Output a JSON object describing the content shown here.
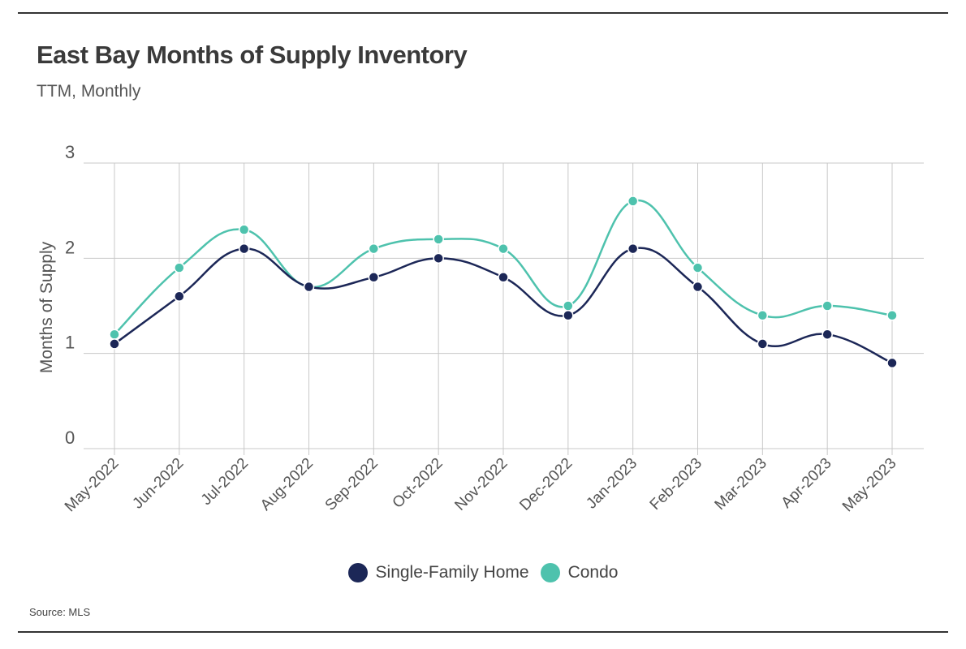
{
  "header": {
    "title": "East Bay Months of Supply Inventory",
    "subtitle": "TTM, Monthly"
  },
  "footer": {
    "source": "Source:  MLS"
  },
  "colors": {
    "single_family": "#1c2757",
    "condo": "#4ec2ad",
    "grid": "#c8c8c8",
    "axis_text": "#555555"
  },
  "chart_data": {
    "type": "line",
    "title": "East Bay Months of Supply Inventory",
    "subtitle": "TTM, Monthly",
    "xlabel": "",
    "ylabel": "Months of Supply",
    "ylim": [
      0,
      3
    ],
    "yticks": [
      "0",
      "1",
      "2",
      "3"
    ],
    "grid": true,
    "legend_position": "bottom-center",
    "categories": [
      "May-2022",
      "Jun-2022",
      "Jul-2022",
      "Aug-2022",
      "Sep-2022",
      "Oct-2022",
      "Nov-2022",
      "Dec-2022",
      "Jan-2023",
      "Feb-2023",
      "Mar-2023",
      "Apr-2023",
      "May-2023"
    ],
    "series": [
      {
        "name": "Single-Family Home",
        "color": "#1c2757",
        "values": [
          1.1,
          1.6,
          2.1,
          1.7,
          1.8,
          2.0,
          1.8,
          1.4,
          2.1,
          1.7,
          1.1,
          1.2,
          0.9
        ]
      },
      {
        "name": "Condo",
        "color": "#4ec2ad",
        "values": [
          1.2,
          1.9,
          2.3,
          1.7,
          2.1,
          2.2,
          2.1,
          1.5,
          2.6,
          1.9,
          1.4,
          1.5,
          1.4
        ]
      }
    ]
  }
}
